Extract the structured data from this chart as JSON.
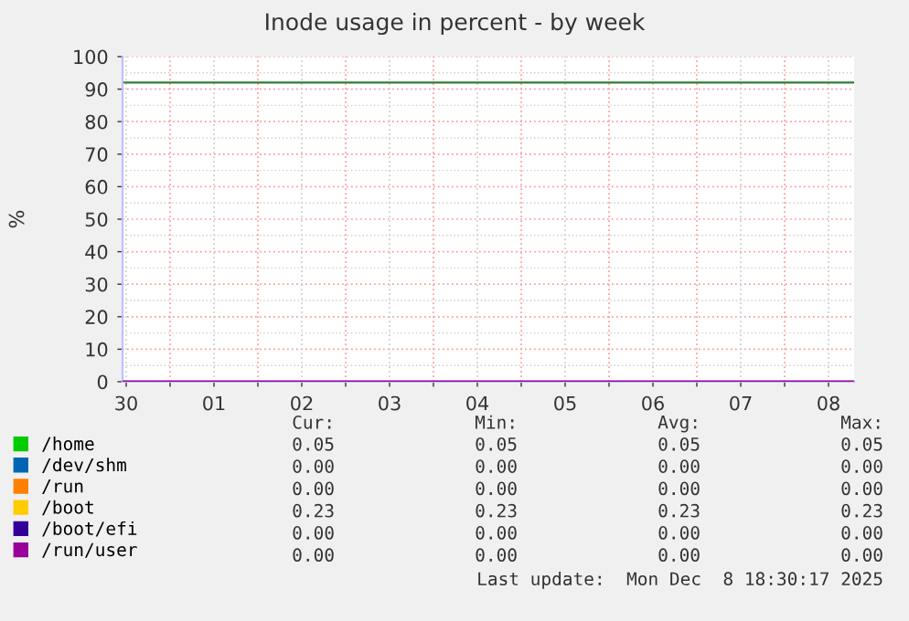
{
  "chart_data": {
    "type": "line",
    "title": "Inode usage in percent - by week",
    "ylabel": "%",
    "x": [
      "2025-11-30T11:00",
      "2025-12-08T19:00"
    ],
    "series": [
      {
        "name": "/home",
        "color": "#00cc00",
        "values": [
          null,
          null
        ]
      },
      {
        "name": "/dev/shm",
        "color": "#0066b3",
        "values": [
          null,
          null
        ]
      },
      {
        "name": "/run",
        "color": "#ff8000",
        "values": [
          null,
          null
        ]
      },
      {
        "name": "/boot",
        "color": "#ffcc00",
        "values": [
          null,
          null
        ]
      },
      {
        "name": "/boot/efi",
        "color": "#330099",
        "values": [
          null,
          null
        ]
      },
      {
        "name": "/run/user",
        "color": "#990099",
        "values": [
          0.0,
          0.0
        ]
      }
    ],
    "xlim": [
      "2025-11-30T11:00",
      "2025-12-08T19:00"
    ],
    "xticks": [
      {
        "value": "2025-11-30T12:00",
        "label": "30"
      },
      {
        "value": "2025-12-01T00:00",
        "label": null
      },
      {
        "value": "2025-12-01T12:00",
        "label": "01"
      },
      {
        "value": "2025-12-02T00:00",
        "label": null
      },
      {
        "value": "2025-12-02T12:00",
        "label": "02"
      },
      {
        "value": "2025-12-03T00:00",
        "label": null
      },
      {
        "value": "2025-12-03T12:00",
        "label": "03"
      },
      {
        "value": "2025-12-04T00:00",
        "label": null
      },
      {
        "value": "2025-12-04T12:00",
        "label": "04"
      },
      {
        "value": "2025-12-05T00:00",
        "label": null
      },
      {
        "value": "2025-12-05T12:00",
        "label": "05"
      },
      {
        "value": "2025-12-06T00:00",
        "label": null
      },
      {
        "value": "2025-12-06T12:00",
        "label": "06"
      },
      {
        "value": "2025-12-07T00:00",
        "label": null
      },
      {
        "value": "2025-12-07T12:00",
        "label": "07"
      },
      {
        "value": "2025-12-08T00:00",
        "label": null
      },
      {
        "value": "2025-12-08T12:00",
        "label": "08"
      }
    ],
    "ylim": [
      0,
      100
    ],
    "yticks": [
      0,
      10,
      20,
      30,
      40,
      50,
      60,
      70,
      80,
      90,
      100
    ],
    "grid": true,
    "legend": "bottom",
    "marker": "none",
    "line_style": "solid",
    "ref_lines": [
      {
        "axis": "y",
        "value": 92,
        "color": "#2e7d32"
      }
    ],
    "annotations": [
      "Cur:",
      "Min:",
      "Avg:",
      "Max:",
      "0.05",
      "0.05",
      "0.05",
      "0.05",
      "0.00",
      "0.00",
      "0.00",
      "0.00",
      "0.00",
      "0.00",
      "0.00",
      "0.00",
      "0.23",
      "0.23",
      "0.23",
      "0.23",
      "0.00",
      "0.00",
      "0.00",
      "0.00",
      "0.00",
      "0.00",
      "0.00",
      "0.00",
      "Last update:  Mon Dec  8 18:30:17 2025"
    ]
  }
}
